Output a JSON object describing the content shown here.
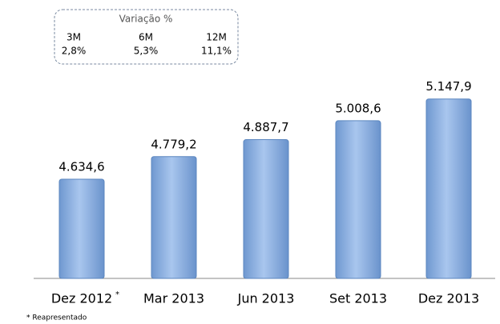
{
  "chart_data": {
    "type": "bar",
    "categories": [
      "Dez 2012",
      "Mar 2013",
      "Jun 2013",
      "Set 2013",
      "Dez 2013"
    ],
    "values": [
      4634.6,
      4779.2,
      4887.7,
      5008.6,
      5147.9
    ],
    "value_labels": [
      "4.634,6",
      "4.779,2",
      "4.887,7",
      "5.008,6",
      "5.147,9"
    ],
    "color": "#7fa8dc",
    "ylim": [
      4000,
      5300
    ],
    "footnote_marker": "*",
    "footnote": "* Reapresentado"
  },
  "variation": {
    "title": "Variação %",
    "columns": [
      {
        "label": "3M",
        "value": "2,8%"
      },
      {
        "label": "6M",
        "value": "5,3%"
      },
      {
        "label": "12M",
        "value": "11,1%"
      }
    ]
  }
}
